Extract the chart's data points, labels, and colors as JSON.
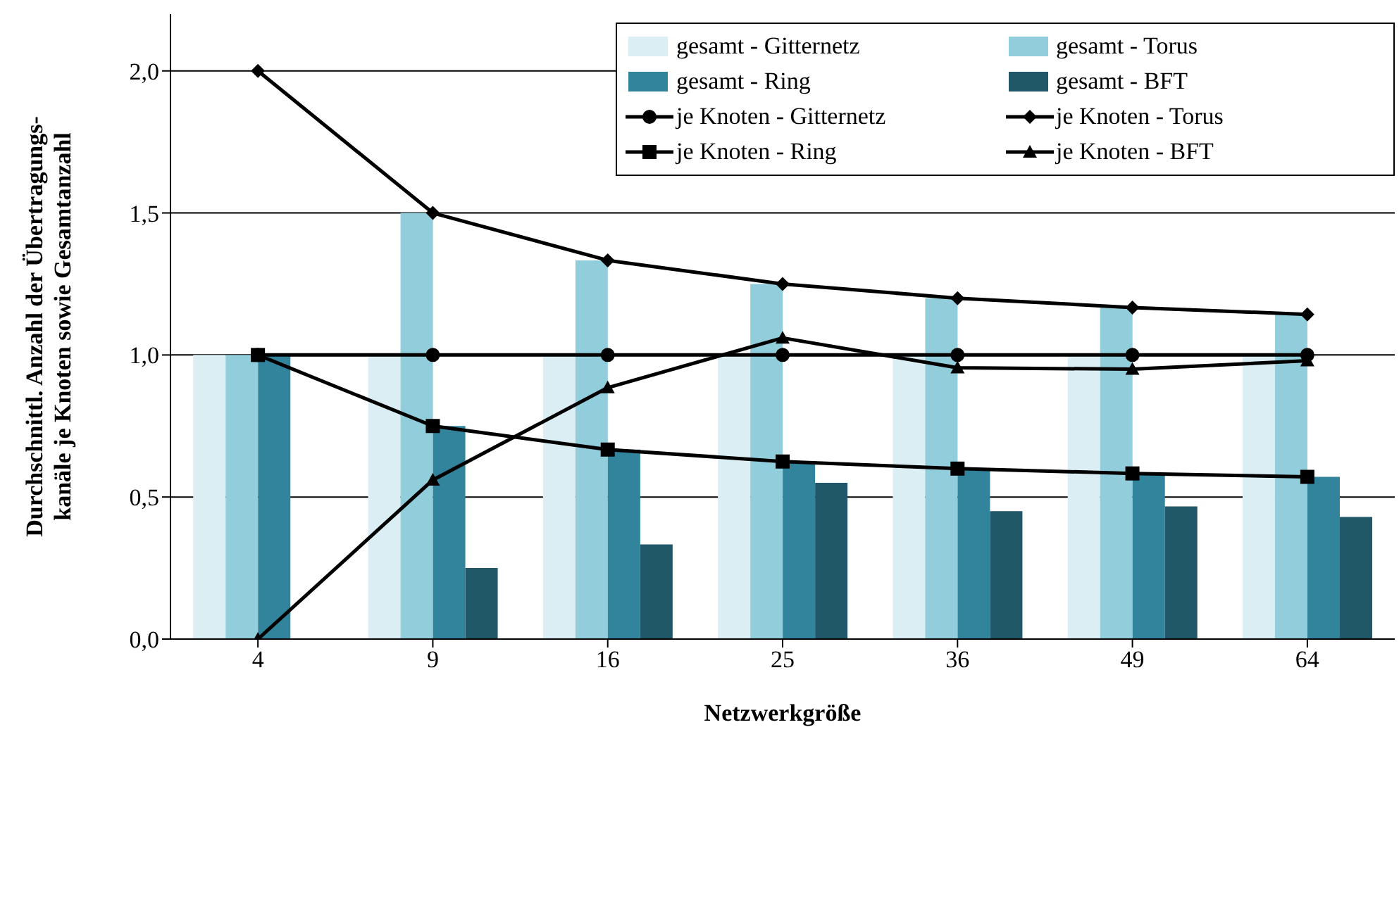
{
  "chart_data": {
    "type": "bar",
    "xlabel": "Netzwerkgröße",
    "ylabel": "Durchschnittl. Anzahl der Übertragungs-\nkanäle je Knoten sowie Gesamtanzahl",
    "categories": [
      "4",
      "9",
      "16",
      "25",
      "36",
      "49",
      "64"
    ],
    "series": [
      {
        "name": "gesamt - Gitternetz",
        "color": "#daeef3",
        "values": [
          1.0,
          1.0,
          1.0,
          1.0,
          1.0,
          1.0,
          1.0
        ]
      },
      {
        "name": "gesamt - Torus",
        "color": "#92cddc",
        "values": [
          1.0,
          1.5,
          1.333,
          1.25,
          1.2,
          1.167,
          1.143
        ]
      },
      {
        "name": "gesamt - Ring",
        "color": "#31849b",
        "values": [
          1.0,
          0.75,
          0.667,
          0.625,
          0.6,
          0.583,
          0.571
        ]
      },
      {
        "name": "gesamt - BFT",
        "color": "#215868",
        "values": [
          0,
          0.25,
          0.333,
          0.55,
          0.45,
          0.467,
          0.43
        ]
      },
      {
        "name": "je Knoten - Gitternetz",
        "type": "line",
        "marker": "circle",
        "color": "#000000",
        "values": [
          1.0,
          1.0,
          1.0,
          1.0,
          1.0,
          1.0,
          1.0
        ]
      },
      {
        "name": "je Knoten - Torus",
        "type": "line",
        "marker": "diamond",
        "color": "#000000",
        "values": [
          2.0,
          1.5,
          1.333,
          1.25,
          1.2,
          1.167,
          1.143
        ]
      },
      {
        "name": "je Knoten - Ring",
        "type": "line",
        "marker": "square",
        "color": "#000000",
        "values": [
          1.0,
          0.75,
          0.667,
          0.625,
          0.6,
          0.583,
          0.571
        ]
      },
      {
        "name": "je Knoten - BFT",
        "type": "line",
        "marker": "triangle",
        "color": "#000000",
        "values": [
          0,
          0.56,
          0.885,
          1.06,
          0.955,
          0.95,
          0.98
        ]
      }
    ],
    "ylim": [
      0,
      2.2
    ],
    "yticks": [
      {
        "value": 0,
        "label": "0,0"
      },
      {
        "value": 0.5,
        "label": "0,5"
      },
      {
        "value": 1,
        "label": "1,0"
      },
      {
        "value": 1.5,
        "label": "1,5"
      },
      {
        "value": 2,
        "label": "2,0"
      }
    ],
    "grid": "y",
    "legend": "top right",
    "line_style": "solid"
  }
}
